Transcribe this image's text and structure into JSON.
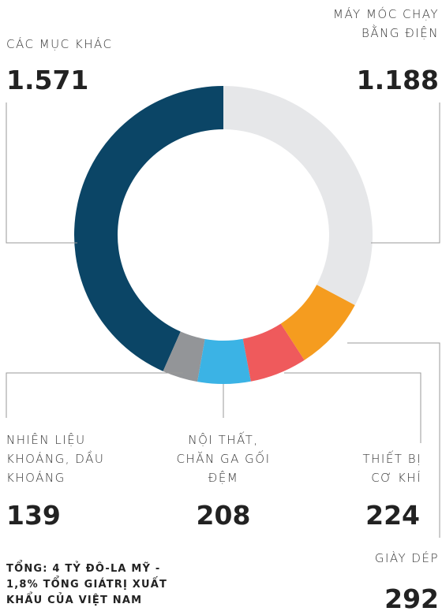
{
  "chart_data": {
    "type": "pie",
    "donut": true,
    "categories": [
      "MÁY MÓC CHẠY\nBẰNG ĐIỆN",
      "GIÀY DÉP",
      "THIẾT BỊ\nCƠ KHÍ",
      "NỘI THẤT,\nCHĂN GA GỐI\nĐỆM",
      "NHIÊN LIỆU\nKHOÁNG, DẦU\nKHOÁNG",
      "CÁC MỤC KHÁC"
    ],
    "values": [
      1188,
      292,
      224,
      208,
      139,
      1571
    ],
    "value_labels": [
      "1.188",
      "292",
      "224",
      "208",
      "139",
      "1.571"
    ],
    "colors": [
      "#e6e7e9",
      "#f59c1f",
      "#ef5a5c",
      "#3bb3e5",
      "#939598",
      "#0b4566"
    ],
    "note": "TỔNG: 4 TỶ ĐÔ-LA MỸ -\n1,8% TỔNG GIÁTRỊ XUẤT\nKHẨU CỦA VIỆT NAM"
  }
}
